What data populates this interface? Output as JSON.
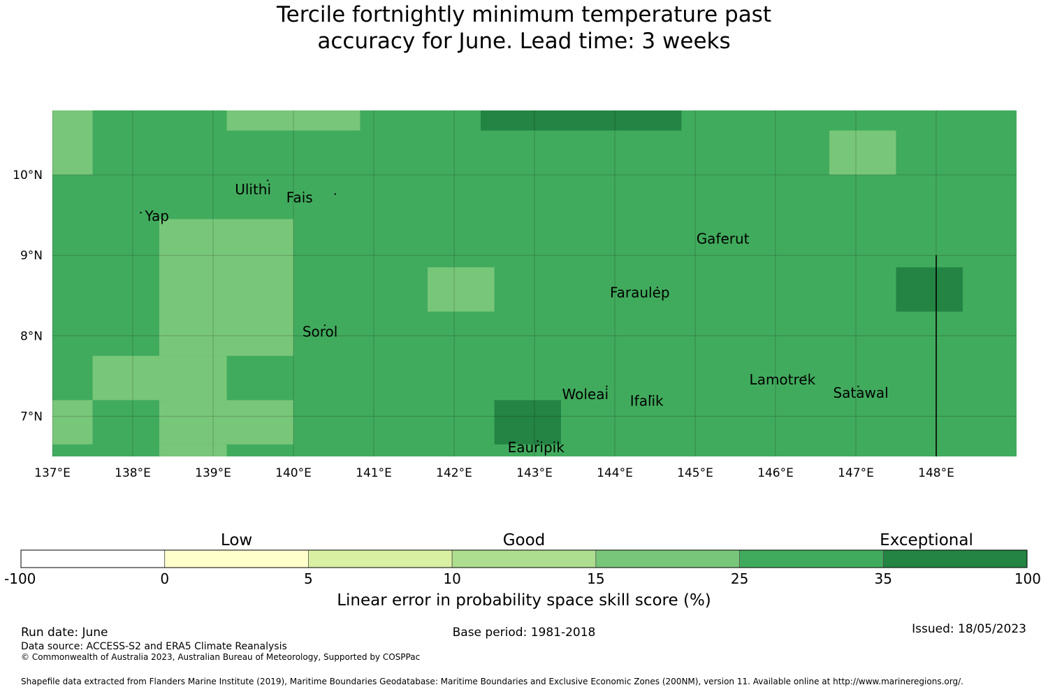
{
  "title_lines": [
    "Tercile fortnightly minimum temperature past",
    "accuracy for June. Lead time: 3 weeks"
  ],
  "map": {
    "lon_ticks": [
      "137°E",
      "138°E",
      "139°E",
      "140°E",
      "141°E",
      "142°E",
      "143°E",
      "144°E",
      "145°E",
      "146°E",
      "147°E",
      "148°E"
    ],
    "lat_ticks": [
      "10°N",
      "9°N",
      "8°N",
      "7°N"
    ],
    "lon_range": [
      137.0,
      149.0
    ],
    "lat_range": [
      6.5,
      10.8
    ],
    "grid": true,
    "islands": [
      {
        "name": "Ulithi",
        "lon": 139.68,
        "lat": 9.93
      },
      {
        "name": "Fais",
        "lon": 140.52,
        "lat": 9.76
      },
      {
        "name": "Yap",
        "lon": 138.1,
        "lat": 9.53
      },
      {
        "name": "Gaferut",
        "lon": 145.38,
        "lat": 9.23
      },
      {
        "name": "Faraulep",
        "lon": 144.53,
        "lat": 8.6
      },
      {
        "name": "Sorol",
        "lon": 140.39,
        "lat": 8.13
      },
      {
        "name": "Woleai",
        "lon": 143.9,
        "lat": 7.37
      },
      {
        "name": "Ifalik",
        "lon": 144.45,
        "lat": 7.25
      },
      {
        "name": "Lamotrek",
        "lon": 146.37,
        "lat": 7.5
      },
      {
        "name": "Satawal",
        "lon": 147.03,
        "lat": 7.37
      },
      {
        "name": "Eauripik",
        "lon": 143.04,
        "lat": 6.69
      }
    ],
    "boundary_line": {
      "lon": 148.0,
      "lat_range": [
        6.5,
        9.0
      ]
    }
  },
  "colorbar": {
    "categories": [
      {
        "label": "Low",
        "at": 1.5
      },
      {
        "label": "Good",
        "at": 3.5
      },
      {
        "label": "Exceptional",
        "at": 6.3
      }
    ],
    "bounds": [
      "-100",
      "0",
      "5",
      "10",
      "15",
      "25",
      "35",
      "100"
    ],
    "colors": [
      "#ffffff",
      "#ffffcc",
      "#d9f0a3",
      "#addd8e",
      "#78c679",
      "#41ab5d",
      "#238443"
    ],
    "label": "Linear error in probability space skill score (%)"
  },
  "footer": {
    "run_date": "Run date: June",
    "base_period": "Base period: 1981-2018",
    "issued": "Issued: 18/05/2023",
    "data_source": "Data source: ACCESS-S2 and ERA5 Climate Reanalysis",
    "copyright": "© Commonwealth of Australia 2023, Australian Bureau of Meteorology, Supported by COSPPac",
    "shapefile": "Shapefile data extracted from Flanders Marine Institute (2019), Maritime Boundaries Geodatabase: Maritime Boundaries and Exclusive Economic Zones (200NM), version 11. Available online at http://www.marineregions.org/."
  },
  "chart_data": {
    "type": "heatmap",
    "title": "Tercile fortnightly minimum temperature past accuracy for June. Lead time: 3 weeks",
    "xlabel": "",
    "ylabel": "",
    "legend_label": "Linear error in probability space skill score (%)",
    "x_range": [
      137.0,
      149.0
    ],
    "y_range": [
      6.5,
      10.8
    ],
    "base_class": "25-35",
    "cells": [
      {
        "lon": [
          137.0,
          137.5
        ],
        "lat": [
          10.0,
          10.8
        ],
        "class": "15-25"
      },
      {
        "lon": [
          139.17,
          140.83
        ],
        "lat": [
          10.55,
          10.8
        ],
        "class": "15-25"
      },
      {
        "lon": [
          142.33,
          144.83
        ],
        "lat": [
          10.55,
          10.8
        ],
        "class": "35-100"
      },
      {
        "lon": [
          146.67,
          147.5
        ],
        "lat": [
          10.0,
          10.55
        ],
        "class": "15-25"
      },
      {
        "lon": [
          138.33,
          140.0
        ],
        "lat": [
          7.75,
          9.45
        ],
        "class": "15-25"
      },
      {
        "lon": [
          137.5,
          139.17
        ],
        "lat": [
          7.2,
          7.75
        ],
        "class": "15-25"
      },
      {
        "lon": [
          137.0,
          137.5
        ],
        "lat": [
          6.65,
          7.2
        ],
        "class": "15-25"
      },
      {
        "lon": [
          138.33,
          140.0
        ],
        "lat": [
          6.65,
          7.2
        ],
        "class": "15-25"
      },
      {
        "lon": [
          138.33,
          139.17
        ],
        "lat": [
          6.5,
          6.65
        ],
        "class": "15-25"
      },
      {
        "lon": [
          141.67,
          142.5
        ],
        "lat": [
          8.3,
          8.85
        ],
        "class": "15-25"
      },
      {
        "lon": [
          142.5,
          143.33
        ],
        "lat": [
          6.65,
          7.2
        ],
        "class": "35-100"
      },
      {
        "lon": [
          147.5,
          148.33
        ],
        "lat": [
          8.3,
          8.85
        ],
        "class": "35-100"
      }
    ]
  }
}
